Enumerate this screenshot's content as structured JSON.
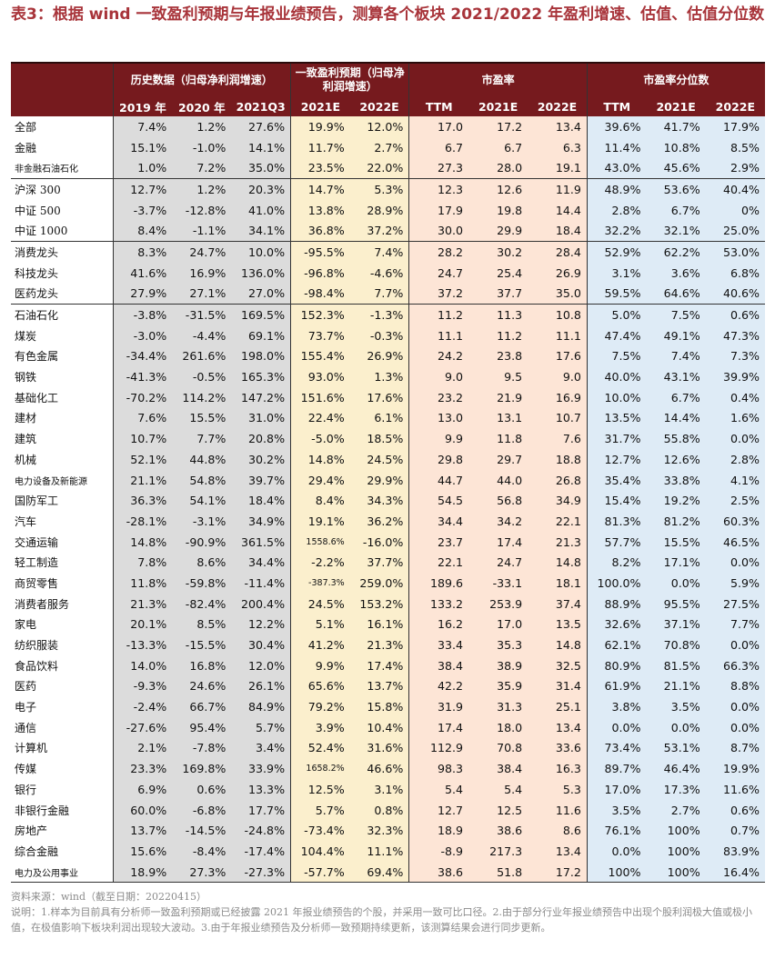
{
  "title": "表3：根据 wind 一致盈利预期与年报业绩预告，测算各个板块 2021/2022 年盈利增速、估值、估值分位数",
  "groups": {
    "hist": "历史数据（归母净利润增速）",
    "consensus": "一致盈利预期（归母净利润增速）",
    "pe": "市盈率",
    "pe_pct": "市盈率分位数"
  },
  "columns": [
    "2019 年",
    "2020 年",
    "2021Q3",
    "2021E",
    "2022E",
    "TTM",
    "2021E",
    "2022E",
    "TTM",
    "2021E",
    "2022E"
  ],
  "rows": [
    {
      "name": "全部",
      "v": [
        "7.4%",
        "1.2%",
        "27.6%",
        "19.9%",
        "12.0%",
        "17.0",
        "17.2",
        "13.4",
        "39.6%",
        "41.7%",
        "17.9%"
      ]
    },
    {
      "name": "金融",
      "v": [
        "15.1%",
        "-1.0%",
        "14.1%",
        "11.7%",
        "2.7%",
        "6.7",
        "6.7",
        "6.3",
        "11.4%",
        "10.8%",
        "8.5%"
      ]
    },
    {
      "name": "非金融石油石化",
      "v": [
        "1.0%",
        "7.2%",
        "35.0%",
        "23.5%",
        "22.0%",
        "27.3",
        "28.0",
        "19.1",
        "43.0%",
        "45.6%",
        "2.9%"
      ]
    },
    {
      "name": "沪深 300",
      "v": [
        "12.7%",
        "1.2%",
        "20.3%",
        "14.7%",
        "5.3%",
        "12.3",
        "12.6",
        "11.9",
        "48.9%",
        "53.6%",
        "40.4%"
      ]
    },
    {
      "name": "中证 500",
      "v": [
        "-3.7%",
        "-12.8%",
        "41.0%",
        "13.8%",
        "28.9%",
        "17.9",
        "19.8",
        "14.4",
        "2.8%",
        "6.7%",
        "0%"
      ]
    },
    {
      "name": "中证 1000",
      "v": [
        "8.4%",
        "-1.1%",
        "34.1%",
        "36.8%",
        "37.2%",
        "30.0",
        "29.9",
        "18.4",
        "32.2%",
        "32.1%",
        "25.0%"
      ]
    },
    {
      "name": "消费龙头",
      "v": [
        "8.3%",
        "24.7%",
        "10.0%",
        "-95.5%",
        "7.4%",
        "28.2",
        "30.2",
        "28.4",
        "52.9%",
        "62.2%",
        "53.0%"
      ]
    },
    {
      "name": "科技龙头",
      "v": [
        "41.6%",
        "16.9%",
        "136.0%",
        "-96.8%",
        "-4.6%",
        "24.7",
        "25.4",
        "26.9",
        "3.1%",
        "3.6%",
        "6.8%"
      ]
    },
    {
      "name": "医药龙头",
      "v": [
        "27.9%",
        "27.1%",
        "27.0%",
        "-98.4%",
        "7.7%",
        "37.2",
        "37.7",
        "35.0",
        "59.5%",
        "64.6%",
        "40.6%"
      ]
    },
    {
      "name": "石油石化",
      "v": [
        "-3.8%",
        "-31.5%",
        "169.5%",
        "152.3%",
        "-1.3%",
        "11.2",
        "11.3",
        "10.8",
        "5.0%",
        "7.5%",
        "0.6%"
      ]
    },
    {
      "name": "煤炭",
      "v": [
        "-3.0%",
        "-4.4%",
        "69.1%",
        "73.7%",
        "-0.3%",
        "11.1",
        "11.2",
        "11.1",
        "47.4%",
        "49.1%",
        "47.3%"
      ]
    },
    {
      "name": "有色金属",
      "v": [
        "-34.4%",
        "261.6%",
        "198.0%",
        "155.4%",
        "26.9%",
        "24.2",
        "23.8",
        "17.6",
        "7.5%",
        "7.4%",
        "7.3%"
      ]
    },
    {
      "name": "钢铁",
      "v": [
        "-41.3%",
        "-0.5%",
        "165.3%",
        "93.0%",
        "1.3%",
        "9.0",
        "9.5",
        "9.0",
        "40.0%",
        "43.1%",
        "39.9%"
      ]
    },
    {
      "name": "基础化工",
      "v": [
        "-70.2%",
        "114.2%",
        "147.2%",
        "151.6%",
        "17.6%",
        "23.2",
        "21.9",
        "16.9",
        "10.0%",
        "6.7%",
        "0.4%"
      ]
    },
    {
      "name": "建材",
      "v": [
        "7.6%",
        "15.5%",
        "31.0%",
        "22.4%",
        "6.1%",
        "13.0",
        "13.1",
        "10.7",
        "13.5%",
        "14.4%",
        "1.6%"
      ]
    },
    {
      "name": "建筑",
      "v": [
        "10.7%",
        "7.7%",
        "20.8%",
        "-5.0%",
        "18.5%",
        "9.9",
        "11.8",
        "7.6",
        "31.7%",
        "55.8%",
        "0.0%"
      ]
    },
    {
      "name": "机械",
      "v": [
        "52.1%",
        "44.8%",
        "30.2%",
        "14.8%",
        "24.5%",
        "29.8",
        "29.7",
        "18.8",
        "12.7%",
        "12.6%",
        "2.8%"
      ]
    },
    {
      "name": "电力设备及新能源",
      "v": [
        "21.1%",
        "54.8%",
        "39.7%",
        "29.4%",
        "29.9%",
        "44.7",
        "44.0",
        "26.8",
        "35.4%",
        "33.8%",
        "4.1%"
      ]
    },
    {
      "name": "国防军工",
      "v": [
        "36.3%",
        "54.1%",
        "18.4%",
        "8.4%",
        "34.3%",
        "54.5",
        "56.8",
        "34.9",
        "15.4%",
        "19.2%",
        "2.5%"
      ]
    },
    {
      "name": "汽车",
      "v": [
        "-28.1%",
        "-3.1%",
        "34.9%",
        "19.1%",
        "36.2%",
        "34.4",
        "34.2",
        "22.1",
        "81.3%",
        "81.2%",
        "60.3%"
      ]
    },
    {
      "name": "交通运输",
      "v": [
        "14.8%",
        "-90.9%",
        "361.5%",
        "1558.6%",
        "-16.0%",
        "23.7",
        "17.4",
        "21.3",
        "57.7%",
        "15.5%",
        "46.5%"
      ]
    },
    {
      "name": "轻工制造",
      "v": [
        "7.8%",
        "8.6%",
        "34.4%",
        "-2.2%",
        "37.7%",
        "22.1",
        "24.7",
        "14.8",
        "8.2%",
        "17.1%",
        "0.0%"
      ]
    },
    {
      "name": "商贸零售",
      "v": [
        "11.8%",
        "-59.8%",
        "-11.4%",
        "-387.3%",
        "259.0%",
        "189.6",
        "-33.1",
        "18.1",
        "100.0%",
        "0.0%",
        "5.9%"
      ]
    },
    {
      "name": "消费者服务",
      "v": [
        "21.3%",
        "-82.4%",
        "200.4%",
        "24.5%",
        "153.2%",
        "133.2",
        "253.9",
        "37.4",
        "88.9%",
        "95.5%",
        "27.5%"
      ]
    },
    {
      "name": "家电",
      "v": [
        "20.1%",
        "8.5%",
        "12.2%",
        "5.1%",
        "16.1%",
        "16.2",
        "17.0",
        "13.5",
        "32.6%",
        "37.1%",
        "7.7%"
      ]
    },
    {
      "name": "纺织服装",
      "v": [
        "-13.3%",
        "-15.5%",
        "30.4%",
        "41.2%",
        "21.3%",
        "33.4",
        "35.3",
        "14.8",
        "62.1%",
        "70.8%",
        "0.0%"
      ]
    },
    {
      "name": "食品饮料",
      "v": [
        "14.0%",
        "16.8%",
        "12.0%",
        "9.9%",
        "17.4%",
        "38.4",
        "38.9",
        "32.5",
        "80.9%",
        "81.5%",
        "66.3%"
      ]
    },
    {
      "name": "医药",
      "v": [
        "-9.3%",
        "24.6%",
        "26.1%",
        "65.6%",
        "13.7%",
        "42.2",
        "35.9",
        "31.4",
        "61.9%",
        "21.1%",
        "8.8%"
      ]
    },
    {
      "name": "电子",
      "v": [
        "-2.4%",
        "66.7%",
        "84.9%",
        "79.2%",
        "15.8%",
        "31.9",
        "31.3",
        "25.1",
        "3.8%",
        "3.5%",
        "0.0%"
      ]
    },
    {
      "name": "通信",
      "v": [
        "-27.6%",
        "95.4%",
        "5.7%",
        "3.9%",
        "10.4%",
        "17.4",
        "18.0",
        "13.4",
        "0.0%",
        "0.0%",
        "0.0%"
      ]
    },
    {
      "name": "计算机",
      "v": [
        "2.1%",
        "-7.8%",
        "3.4%",
        "52.4%",
        "31.6%",
        "112.9",
        "70.8",
        "33.6",
        "73.4%",
        "53.1%",
        "8.7%"
      ]
    },
    {
      "name": "传媒",
      "v": [
        "23.3%",
        "169.8%",
        "33.9%",
        "1658.2%",
        "46.6%",
        "98.3",
        "38.4",
        "16.3",
        "89.7%",
        "46.4%",
        "19.9%"
      ]
    },
    {
      "name": "银行",
      "v": [
        "6.9%",
        "0.6%",
        "13.3%",
        "12.5%",
        "3.1%",
        "5.4",
        "5.4",
        "5.3",
        "17.0%",
        "17.3%",
        "11.6%"
      ]
    },
    {
      "name": "非银行金融",
      "v": [
        "60.0%",
        "-6.8%",
        "17.7%",
        "5.7%",
        "0.8%",
        "12.7",
        "12.5",
        "11.6",
        "3.5%",
        "2.7%",
        "0.6%"
      ]
    },
    {
      "name": "房地产",
      "v": [
        "13.7%",
        "-14.5%",
        "-24.8%",
        "-73.4%",
        "32.3%",
        "18.9",
        "38.6",
        "8.6",
        "76.1%",
        "100%",
        "0.7%"
      ]
    },
    {
      "name": "综合金融",
      "v": [
        "15.6%",
        "-8.4%",
        "-17.4%",
        "104.4%",
        "11.1%",
        "-8.9",
        "217.3",
        "13.4",
        "0.0%",
        "100%",
        "83.9%"
      ]
    },
    {
      "name": "电力及公用事业",
      "v": [
        "18.9%",
        "27.3%",
        "-27.3%",
        "-57.7%",
        "69.4%",
        "38.6",
        "51.8",
        "17.2",
        "100%",
        "100%",
        "16.4%"
      ]
    }
  ],
  "separator_before": [
    3,
    6,
    9
  ],
  "notes": {
    "source": "资料来源：wind（截至日期：20220415）",
    "desc": "说明：1.样本为目前具有分析师一致盈利预期或已经披露 2021 年报业绩预告的个股，并采用一致可比口径。2.由于部分行业年报业绩预告中出现个股利润极大值或极小值，在极值影响下板块利润出现较大波动。3.由于年报业绩预告及分析师一致预期持续更新，该测算结果会进行同步更新。"
  },
  "colors": {
    "header_bg": "#761a1e",
    "title": "#a8343a",
    "hist_band": "#dcdcdc",
    "consensus_band": "#fbefcd",
    "pe_band": "#fde5d6",
    "pe_pct_band": "#deebf6"
  }
}
